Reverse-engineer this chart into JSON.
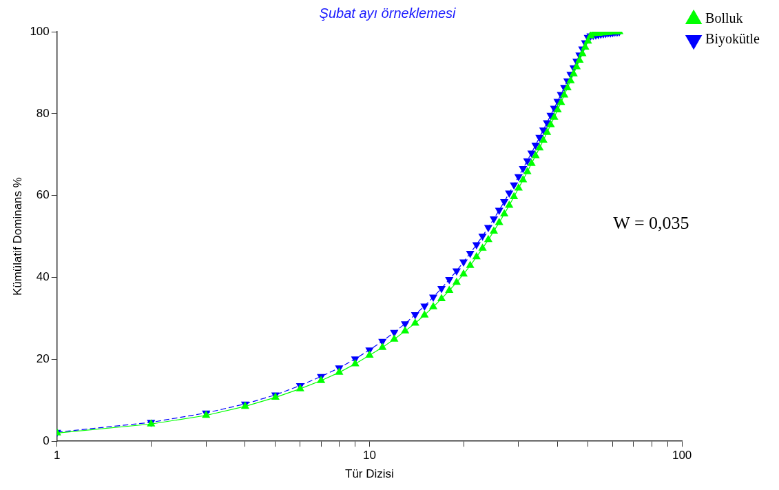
{
  "chart_data": {
    "type": "line",
    "title": "Şubat ayı örneklemesi",
    "xlabel": "Tür Dizisi",
    "ylabel": "Kümülatif Dominans %",
    "log": "x",
    "grid": false,
    "legend": "top right",
    "marker": "triangle",
    "x": [
      1,
      2,
      3,
      4,
      5,
      6,
      7,
      8,
      9,
      10,
      11,
      12,
      13,
      14,
      15,
      16,
      17,
      18,
      19,
      20,
      21,
      22,
      23,
      24,
      25,
      26,
      27,
      28,
      29,
      30,
      31,
      32,
      33,
      34,
      35,
      36,
      37,
      38,
      39,
      40,
      41,
      42,
      43,
      44,
      45,
      46,
      47,
      48,
      49,
      50,
      51,
      52,
      53,
      54,
      55,
      56,
      57,
      58,
      59,
      60,
      61,
      62,
      63
    ],
    "xlim": [
      1,
      100
    ],
    "xticks": [
      1,
      {
        "value": 2,
        "label": null
      },
      {
        "value": 3,
        "label": null
      },
      {
        "value": 4,
        "label": null
      },
      {
        "value": 5,
        "label": null
      },
      {
        "value": 6,
        "label": null
      },
      {
        "value": 7,
        "label": null
      },
      {
        "value": 8,
        "label": null
      },
      {
        "value": 9,
        "label": null
      },
      10,
      {
        "value": 20,
        "label": null
      },
      {
        "value": 30,
        "label": null
      },
      {
        "value": 40,
        "label": null
      },
      {
        "value": 50,
        "label": null
      },
      {
        "value": 60,
        "label": null
      },
      {
        "value": 70,
        "label": null
      },
      {
        "value": 80,
        "label": null
      },
      {
        "value": 90,
        "label": null
      },
      100
    ],
    "ylim": [
      0,
      100
    ],
    "yticks": [
      0,
      20,
      40,
      60,
      80,
      100
    ],
    "annotations": [
      "W = 0,035"
    ],
    "series": [
      {
        "name": "Bolluk",
        "color": "#00ff00",
        "line_style": "solid",
        "values": [
          2.0,
          4.2,
          6.3,
          8.5,
          10.7,
          12.8,
          14.8,
          16.8,
          18.9,
          21.0,
          22.9,
          24.9,
          26.9,
          28.8,
          30.8,
          32.8,
          34.8,
          36.8,
          38.8,
          40.8,
          42.9,
          45.0,
          47.1,
          49.2,
          51.3,
          53.4,
          55.5,
          57.6,
          59.7,
          61.8,
          63.8,
          65.8,
          67.8,
          69.7,
          71.6,
          73.5,
          75.4,
          77.3,
          79.1,
          80.9,
          82.7,
          84.5,
          86.3,
          88.0,
          89.7,
          91.4,
          93.0,
          94.6,
          96.2,
          97.7,
          99.0,
          99.5,
          99.6,
          99.6,
          99.7,
          99.7,
          99.8,
          99.8,
          99.9,
          99.9,
          99.9,
          100,
          100
        ]
      },
      {
        "name": "Biyokütle",
        "color": "#0000ff",
        "line_style": "dashed",
        "values": [
          2.2,
          4.6,
          6.9,
          9.1,
          11.3,
          13.6,
          15.8,
          17.9,
          20.1,
          22.3,
          24.4,
          26.6,
          28.7,
          30.9,
          33.0,
          35.2,
          37.3,
          39.5,
          41.6,
          43.8,
          45.9,
          48.0,
          50.1,
          52.2,
          54.3,
          56.4,
          58.5,
          60.6,
          62.6,
          64.6,
          66.6,
          68.5,
          70.4,
          72.3,
          74.2,
          76.0,
          77.8,
          79.6,
          81.3,
          83.0,
          84.7,
          86.4,
          88.0,
          89.6,
          91.2,
          92.8,
          94.3,
          95.8,
          97.3,
          98.6,
          99.0,
          99.1,
          99.2,
          99.3,
          99.4,
          99.5,
          99.6,
          99.7,
          99.7,
          99.8,
          99.9,
          99.9,
          100
        ]
      }
    ]
  }
}
